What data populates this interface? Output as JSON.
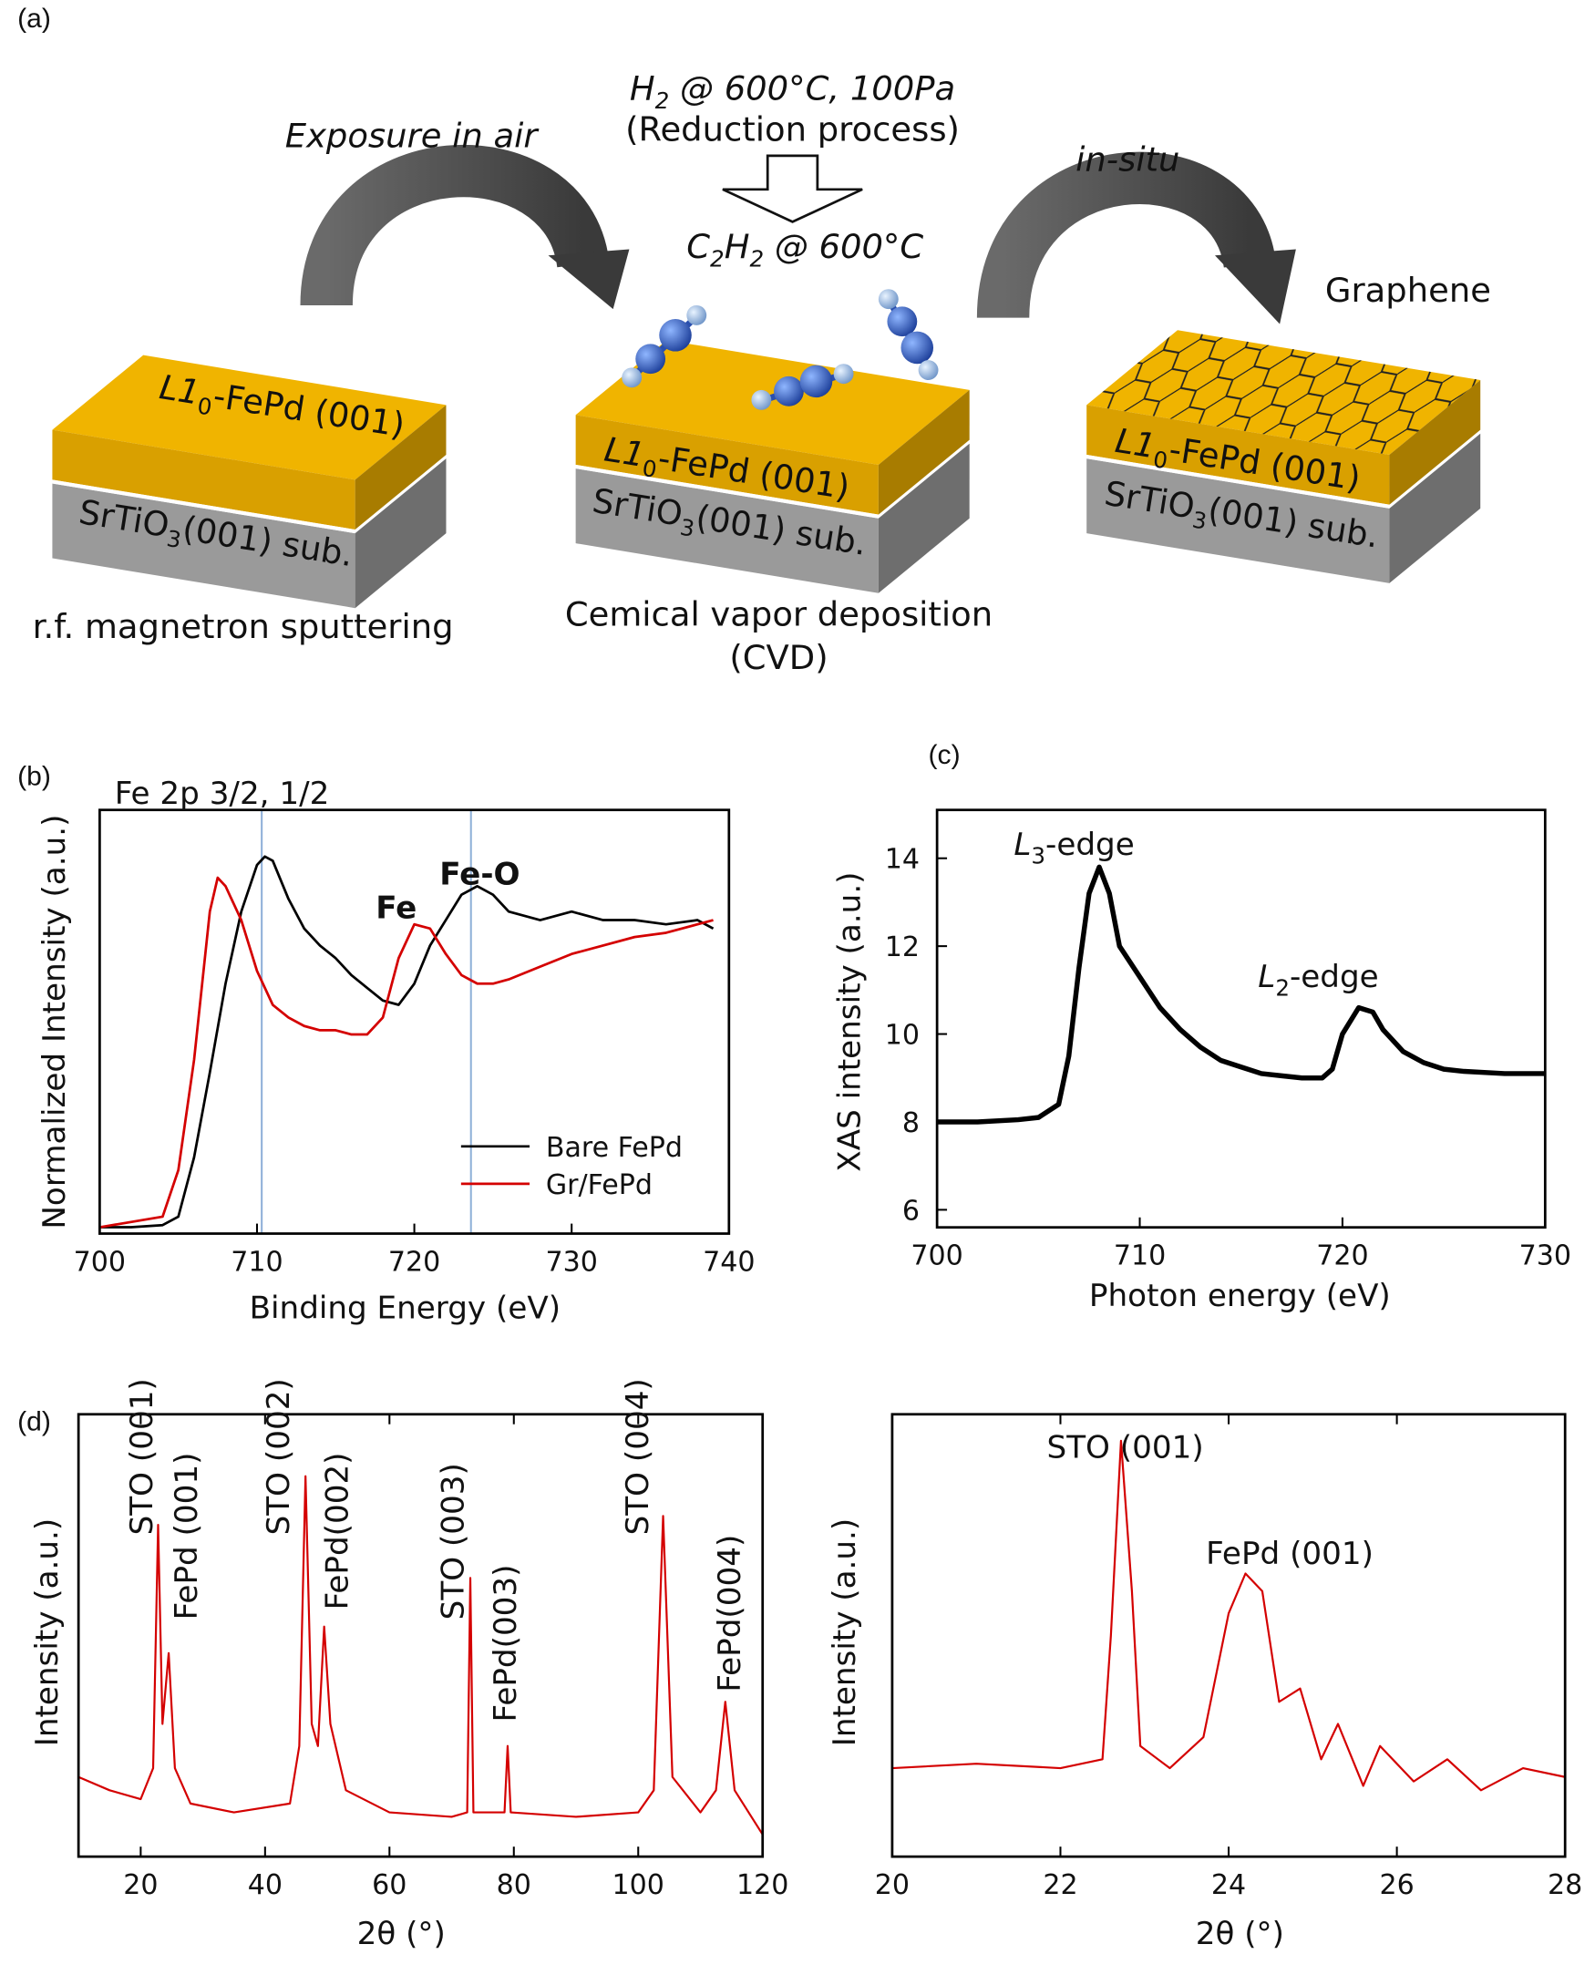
{
  "diagram": {
    "label": "(a)",
    "exposure": "Exposure in air",
    "h2_condition": [
      "H",
      "2",
      " @ 600°C, 100Pa"
    ],
    "reduction": "(Reduction process)",
    "c2h2_condition": [
      "C",
      "2",
      "H",
      "2",
      " @ 600°C"
    ],
    "in_situ": "in-situ",
    "graphene": "Graphene",
    "slabs": [
      {
        "film": [
          "L1",
          "0",
          "-FePd (001)"
        ],
        "substrate": [
          "SrTiO",
          "3",
          "(001) sub."
        ],
        "caption": [
          "r.f. magnetron sputtering"
        ]
      },
      {
        "film": [
          "L1",
          "0",
          "-FePd (001)"
        ],
        "substrate": [
          "SrTiO",
          "3",
          "(001) sub."
        ],
        "caption": [
          "Cemical vapor deposition",
          "(CVD)"
        ]
      },
      {
        "film": [
          "L1",
          "0",
          "-FePd (001)"
        ],
        "substrate": [
          "SrTiO",
          "3",
          "(001) sub."
        ]
      }
    ]
  },
  "chart_data": [
    {
      "type": "line",
      "label": "(b)",
      "title": "Fe 2p 3/2, 1/2",
      "xlabel": "Binding Energy (eV)",
      "ylabel": "Normalized Intensity (a.u.)",
      "xlim": [
        700,
        740
      ],
      "xticks": [
        700,
        710,
        720,
        730,
        740
      ],
      "ylim": [
        0,
        1
      ],
      "legend": "lower right",
      "reference_lines": {
        "x": [
          710.3,
          723.6
        ],
        "color": "#8fb0d8"
      },
      "annotations": [
        {
          "text": "Fe",
          "color": "#b03060",
          "bold": true
        },
        {
          "text": "Fe-O",
          "color": "#111111",
          "bold": true
        }
      ],
      "series": [
        {
          "name": "Bare FePd",
          "color": "#000000",
          "x": [
            700,
            702,
            704,
            705,
            706,
            707,
            708,
            709,
            710,
            710.5,
            711,
            712,
            713,
            714,
            715,
            716,
            717,
            718,
            719,
            720,
            721,
            722,
            723,
            724,
            725,
            726,
            728,
            730,
            732,
            734,
            736,
            738,
            739
          ],
          "values": [
            0.015,
            0.015,
            0.02,
            0.04,
            0.18,
            0.38,
            0.59,
            0.76,
            0.87,
            0.89,
            0.88,
            0.79,
            0.72,
            0.68,
            0.65,
            0.61,
            0.58,
            0.55,
            0.54,
            0.59,
            0.68,
            0.74,
            0.8,
            0.82,
            0.8,
            0.76,
            0.74,
            0.76,
            0.74,
            0.74,
            0.73,
            0.74,
            0.72
          ]
        },
        {
          "name": "Gr/FePd",
          "color": "#d40000",
          "x": [
            700,
            704,
            705,
            706,
            707,
            707.5,
            708,
            709,
            710,
            711,
            712,
            713,
            714,
            715,
            716,
            717,
            718,
            719,
            720,
            721,
            722,
            723,
            724,
            725,
            726,
            728,
            730,
            732,
            734,
            736,
            738,
            739
          ],
          "values": [
            0.015,
            0.04,
            0.15,
            0.41,
            0.76,
            0.84,
            0.82,
            0.74,
            0.62,
            0.54,
            0.51,
            0.49,
            0.48,
            0.48,
            0.47,
            0.47,
            0.51,
            0.65,
            0.73,
            0.72,
            0.66,
            0.61,
            0.59,
            0.59,
            0.6,
            0.63,
            0.66,
            0.68,
            0.7,
            0.71,
            0.73,
            0.74
          ]
        }
      ]
    },
    {
      "type": "line",
      "label": "(c)",
      "xlabel": "Photon energy (eV)",
      "ylabel": "XAS intensity (a.u.)",
      "xlim": [
        700,
        730
      ],
      "xticks": [
        700,
        710,
        720,
        730
      ],
      "ylim": [
        5.6,
        15.1
      ],
      "yticks": [
        6,
        8,
        10,
        12,
        14
      ],
      "annotations": [
        {
          "text": [
            "L",
            "3",
            "-edge"
          ]
        },
        {
          "text": [
            "L",
            "2",
            "-edge"
          ]
        }
      ],
      "series": [
        {
          "color": "#000000",
          "x": [
            700,
            702,
            704,
            705,
            706,
            706.5,
            707,
            707.5,
            708,
            708.5,
            709,
            710,
            711,
            712,
            713,
            714,
            715,
            716,
            717,
            718,
            719,
            719.5,
            720,
            720.8,
            721.5,
            722,
            723,
            724,
            725,
            726,
            728,
            730
          ],
          "values": [
            8.0,
            8.0,
            8.05,
            8.1,
            8.4,
            9.5,
            11.5,
            13.2,
            13.8,
            13.2,
            12.0,
            11.3,
            10.6,
            10.1,
            9.7,
            9.4,
            9.25,
            9.1,
            9.05,
            9.0,
            9.0,
            9.2,
            10.0,
            10.6,
            10.5,
            10.1,
            9.6,
            9.35,
            9.2,
            9.15,
            9.1,
            9.1
          ]
        }
      ]
    },
    {
      "type": "line",
      "label": "(d)",
      "xlabel": "2θ (°)",
      "ylabel": "Intensity (a.u.)",
      "xlim": [
        10,
        120
      ],
      "xticks": [
        20,
        40,
        60,
        80,
        100,
        120
      ],
      "ylim": [
        0,
        1
      ],
      "annotations": [
        {
          "text": "STO (001)"
        },
        {
          "text": "FePd (001)"
        },
        {
          "text": "STO (002)"
        },
        {
          "text": "FePd(002)"
        },
        {
          "text": "STO (003)"
        },
        {
          "text": "FePd(003)"
        },
        {
          "text": "STO (004)"
        },
        {
          "text": "FePd(004)"
        }
      ],
      "series": [
        {
          "color": "#d40000",
          "x": [
            10,
            15,
            20,
            22,
            22.8,
            23.5,
            24.5,
            25.5,
            28,
            35,
            44,
            45.5,
            46.5,
            47.5,
            48.5,
            49.5,
            50.5,
            53,
            60,
            70,
            72.5,
            73,
            73.5,
            78.5,
            79,
            79.5,
            90,
            100,
            102.5,
            104,
            105.5,
            110,
            112.5,
            114,
            115.5,
            120
          ],
          "values": [
            0.18,
            0.15,
            0.13,
            0.2,
            0.75,
            0.3,
            0.46,
            0.2,
            0.12,
            0.1,
            0.12,
            0.25,
            0.86,
            0.3,
            0.25,
            0.52,
            0.3,
            0.15,
            0.1,
            0.09,
            0.1,
            0.63,
            0.1,
            0.1,
            0.25,
            0.1,
            0.09,
            0.1,
            0.15,
            0.77,
            0.18,
            0.1,
            0.15,
            0.35,
            0.15,
            0.05
          ]
        }
      ]
    },
    {
      "type": "line",
      "xlabel": "2θ (°)",
      "ylabel": "Intensity (a.u.)",
      "xlim": [
        20,
        28
      ],
      "xticks": [
        20,
        22,
        24,
        26,
        28
      ],
      "ylim": [
        0,
        1
      ],
      "annotations": [
        {
          "text": "STO (001)"
        },
        {
          "text": "FePd (001)"
        }
      ],
      "series": [
        {
          "color": "#d40000",
          "x": [
            20,
            21,
            22,
            22.5,
            22.6,
            22.72,
            22.85,
            22.95,
            23.3,
            23.7,
            24.0,
            24.2,
            24.4,
            24.6,
            24.85,
            25.1,
            25.3,
            25.6,
            25.8,
            26.2,
            26.6,
            27,
            27.5,
            28
          ],
          "values": [
            0.2,
            0.21,
            0.2,
            0.22,
            0.5,
            0.94,
            0.6,
            0.25,
            0.2,
            0.27,
            0.55,
            0.64,
            0.6,
            0.35,
            0.38,
            0.22,
            0.3,
            0.16,
            0.25,
            0.17,
            0.22,
            0.15,
            0.2,
            0.18
          ]
        }
      ]
    }
  ]
}
